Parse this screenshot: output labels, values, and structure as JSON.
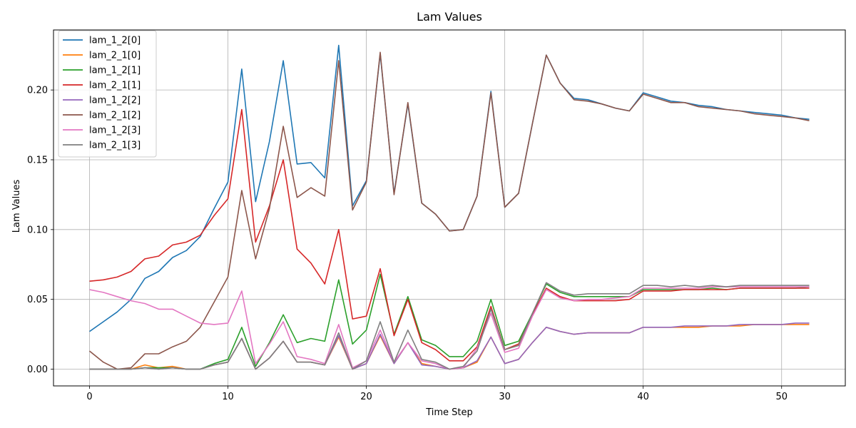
{
  "chart_data": {
    "type": "line",
    "title": "Lam Values",
    "xlabel": "Time Step",
    "ylabel": "Lam Values",
    "xlim": [
      -2.6,
      54.6
    ],
    "ylim": [
      -0.012,
      0.243
    ],
    "xticks": [
      0,
      10,
      20,
      30,
      40,
      50
    ],
    "xtick_labels": [
      "0",
      "10",
      "20",
      "30",
      "40",
      "50"
    ],
    "yticks": [
      0.0,
      0.05,
      0.1,
      0.15,
      0.2
    ],
    "ytick_labels": [
      "0.00",
      "0.05",
      "0.10",
      "0.15",
      "0.20"
    ],
    "grid": true,
    "legend_position": "top-left",
    "x": [
      0,
      1,
      2,
      3,
      4,
      5,
      6,
      7,
      8,
      9,
      10,
      11,
      12,
      13,
      14,
      15,
      16,
      17,
      18,
      19,
      20,
      21,
      22,
      23,
      24,
      25,
      26,
      27,
      28,
      29,
      30,
      31,
      32,
      33,
      34,
      35,
      36,
      37,
      38,
      39,
      40,
      41,
      42,
      43,
      44,
      45,
      46,
      47,
      48,
      49,
      50,
      51,
      52
    ],
    "series": [
      {
        "name": "lam_1_2[0]",
        "color": "#1f77b4",
        "values": [
          0.027,
          0.034,
          0.041,
          0.05,
          0.065,
          0.07,
          0.08,
          0.085,
          0.095,
          0.115,
          0.134,
          0.215,
          0.12,
          0.163,
          0.221,
          0.147,
          0.148,
          0.137,
          0.232,
          0.117,
          0.135,
          0.226,
          0.126,
          0.19,
          0.119,
          0.111,
          0.099,
          0.1,
          0.124,
          0.199,
          0.116,
          0.126,
          0.176,
          0.225,
          0.205,
          0.194,
          0.193,
          0.19,
          0.187,
          0.185,
          0.198,
          0.195,
          0.192,
          0.191,
          0.189,
          0.188,
          0.186,
          0.185,
          0.184,
          0.183,
          0.182,
          0.18,
          0.179
        ]
      },
      {
        "name": "lam_2_1[0]",
        "color": "#ff7f0e",
        "values": [
          0.0,
          0.0,
          0.0,
          0.0,
          0.003,
          0.001,
          0.002,
          0.0,
          0.0,
          0.003,
          0.005,
          0.022,
          0.0,
          0.008,
          0.02,
          0.005,
          0.005,
          0.003,
          0.023,
          0.0,
          0.004,
          0.024,
          0.004,
          0.019,
          0.004,
          0.002,
          0.0,
          0.001,
          0.005,
          0.023,
          0.004,
          0.007,
          0.019,
          0.03,
          0.027,
          0.025,
          0.026,
          0.026,
          0.026,
          0.026,
          0.03,
          0.03,
          0.03,
          0.03,
          0.03,
          0.031,
          0.031,
          0.031,
          0.032,
          0.032,
          0.032,
          0.032,
          0.032
        ]
      },
      {
        "name": "lam_1_2[1]",
        "color": "#2ca02c",
        "values": [
          0.0,
          0.0,
          0.0,
          0.0,
          0.001,
          0.001,
          0.001,
          0.0,
          0.0,
          0.004,
          0.007,
          0.03,
          0.002,
          0.019,
          0.039,
          0.019,
          0.022,
          0.02,
          0.064,
          0.018,
          0.028,
          0.068,
          0.025,
          0.052,
          0.021,
          0.017,
          0.009,
          0.009,
          0.02,
          0.05,
          0.017,
          0.02,
          0.04,
          0.061,
          0.055,
          0.052,
          0.052,
          0.052,
          0.052,
          0.052,
          0.057,
          0.057,
          0.057,
          0.057,
          0.057,
          0.058,
          0.057,
          0.058,
          0.058,
          0.058,
          0.058,
          0.058,
          0.059
        ]
      },
      {
        "name": "lam_2_1[1]",
        "color": "#d62728",
        "values": [
          0.063,
          0.064,
          0.066,
          0.07,
          0.079,
          0.081,
          0.089,
          0.091,
          0.096,
          0.11,
          0.122,
          0.186,
          0.091,
          0.117,
          0.15,
          0.086,
          0.076,
          0.061,
          0.1,
          0.036,
          0.038,
          0.072,
          0.024,
          0.05,
          0.019,
          0.014,
          0.006,
          0.006,
          0.016,
          0.045,
          0.014,
          0.018,
          0.039,
          0.058,
          0.052,
          0.049,
          0.049,
          0.049,
          0.049,
          0.05,
          0.056,
          0.056,
          0.056,
          0.057,
          0.057,
          0.057,
          0.057,
          0.058,
          0.058,
          0.058,
          0.058,
          0.058,
          0.058
        ]
      },
      {
        "name": "lam_1_2[2]",
        "color": "#9467bd",
        "values": [
          0.0,
          0.0,
          0.0,
          0.0,
          0.001,
          0.0,
          0.001,
          0.0,
          0.0,
          0.003,
          0.005,
          0.022,
          0.0,
          0.008,
          0.02,
          0.005,
          0.005,
          0.003,
          0.024,
          0.0,
          0.004,
          0.025,
          0.004,
          0.019,
          0.003,
          0.002,
          0.0,
          0.001,
          0.006,
          0.023,
          0.004,
          0.007,
          0.019,
          0.03,
          0.027,
          0.025,
          0.026,
          0.026,
          0.026,
          0.026,
          0.03,
          0.03,
          0.03,
          0.031,
          0.031,
          0.031,
          0.031,
          0.032,
          0.032,
          0.032,
          0.032,
          0.033,
          0.033
        ]
      },
      {
        "name": "lam_2_1[2]",
        "color": "#8c564b",
        "values": [
          0.013,
          0.005,
          0.0,
          0.001,
          0.011,
          0.011,
          0.016,
          0.02,
          0.03,
          0.048,
          0.066,
          0.128,
          0.079,
          0.115,
          0.174,
          0.123,
          0.13,
          0.124,
          0.221,
          0.114,
          0.134,
          0.227,
          0.125,
          0.191,
          0.119,
          0.111,
          0.099,
          0.1,
          0.124,
          0.198,
          0.116,
          0.126,
          0.176,
          0.225,
          0.205,
          0.193,
          0.192,
          0.19,
          0.187,
          0.185,
          0.197,
          0.194,
          0.191,
          0.191,
          0.188,
          0.187,
          0.186,
          0.185,
          0.183,
          0.182,
          0.181,
          0.18,
          0.178
        ]
      },
      {
        "name": "lam_1_2[3]",
        "color": "#e377c2",
        "values": [
          0.057,
          0.055,
          0.052,
          0.049,
          0.047,
          0.043,
          0.043,
          0.038,
          0.033,
          0.032,
          0.033,
          0.056,
          0.004,
          0.018,
          0.034,
          0.009,
          0.007,
          0.004,
          0.032,
          0.001,
          0.006,
          0.028,
          0.005,
          0.019,
          0.006,
          0.004,
          0.0,
          0.001,
          0.015,
          0.04,
          0.012,
          0.015,
          0.038,
          0.057,
          0.051,
          0.049,
          0.05,
          0.05,
          0.051,
          0.052,
          0.058,
          0.058,
          0.058,
          0.058,
          0.058,
          0.059,
          0.059,
          0.059,
          0.059,
          0.059,
          0.059,
          0.059,
          0.059
        ]
      },
      {
        "name": "lam_2_1[3]",
        "color": "#7f7f7f",
        "values": [
          0.0,
          0.0,
          0.0,
          0.0,
          0.001,
          0.0,
          0.001,
          0.0,
          0.0,
          0.003,
          0.005,
          0.022,
          0.0,
          0.008,
          0.02,
          0.005,
          0.005,
          0.003,
          0.026,
          0.0,
          0.006,
          0.034,
          0.005,
          0.028,
          0.007,
          0.005,
          0.0,
          0.002,
          0.013,
          0.043,
          0.014,
          0.017,
          0.04,
          0.062,
          0.056,
          0.053,
          0.054,
          0.054,
          0.054,
          0.054,
          0.06,
          0.06,
          0.059,
          0.06,
          0.059,
          0.06,
          0.059,
          0.06,
          0.06,
          0.06,
          0.06,
          0.06,
          0.06
        ]
      }
    ]
  }
}
